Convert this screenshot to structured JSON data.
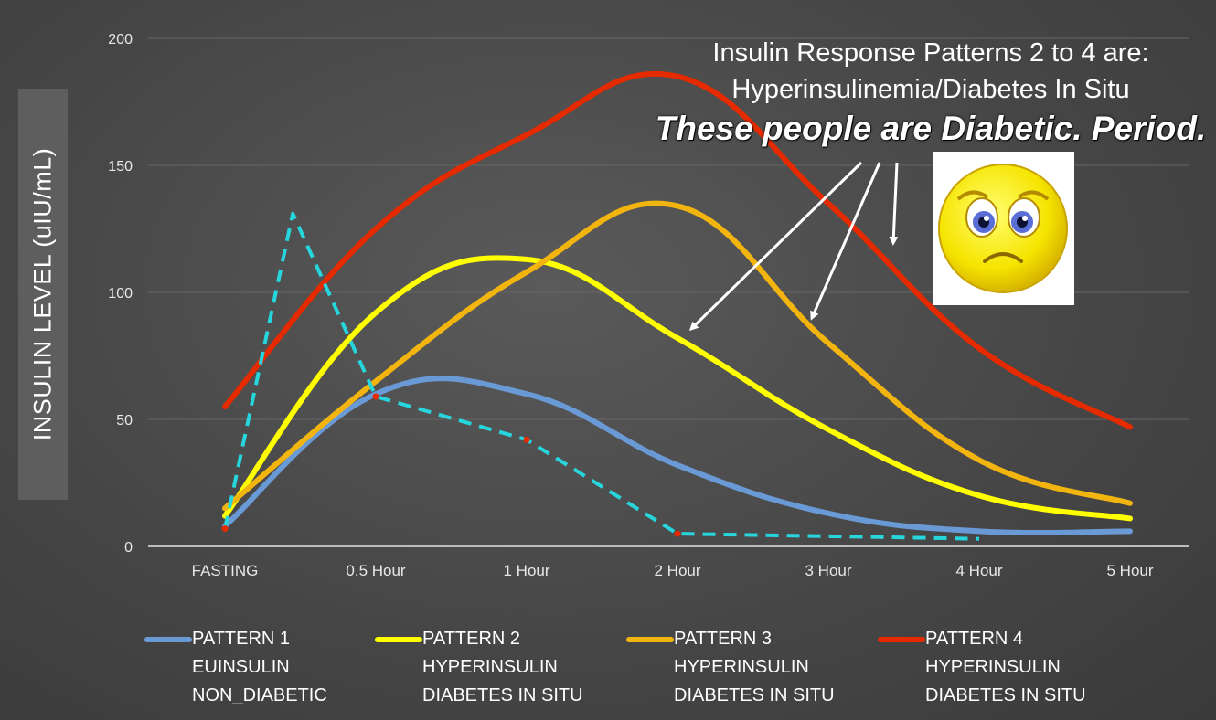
{
  "chart_data": {
    "type": "line",
    "ylabel": "INSULIN LEVEL (uIU/mL)",
    "ylim": [
      0,
      200
    ],
    "yticks": [
      0,
      50,
      100,
      150,
      200
    ],
    "categories": [
      "FASTING",
      "0.5 Hour",
      "1 Hour",
      "2 Hour",
      "3 Hour",
      "4 Hour",
      "5 Hour"
    ],
    "series": [
      {
        "name": "PATTERN 1",
        "line1": "EUINSULIN",
        "line2": "NON_DIABETIC",
        "color": "#6a9ad6",
        "values": [
          8,
          60,
          60,
          32,
          13,
          6,
          6
        ]
      },
      {
        "name": "PATTERN 2",
        "line1": "HYPERINSULIN",
        "line2": "DIABETES IN SITU",
        "color": "#ffff00",
        "values": [
          12,
          92,
          113,
          82,
          46,
          20,
          11
        ]
      },
      {
        "name": "PATTERN 3",
        "line1": "HYPERINSULIN",
        "line2": "DIABETES IN SITU",
        "color": "#f2b50f",
        "values": [
          15,
          65,
          108,
          134,
          80,
          34,
          17
        ]
      },
      {
        "name": "PATTERN 4",
        "line1": "HYPERINSULIN",
        "line2": "DIABETES IN SITU",
        "color": "#e52a00",
        "values": [
          55,
          125,
          162,
          185,
          135,
          78,
          47
        ]
      }
    ],
    "dashed_overlay": {
      "color": "#27d6dd",
      "points": [
        [
          0,
          7
        ],
        [
          0.45,
          131
        ],
        [
          1,
          59
        ],
        [
          2,
          42
        ],
        [
          3,
          5
        ],
        [
          5,
          3
        ]
      ]
    },
    "annotation": {
      "line1": "Insulin Response Patterns 2 to 4 are:",
      "line2": "Hyperinsulinemia/Diabetes In Situ",
      "line3": "These people are Diabetic. Period."
    },
    "emoji": "sad-face-icon",
    "grid": true,
    "legend_position": "bottom"
  }
}
